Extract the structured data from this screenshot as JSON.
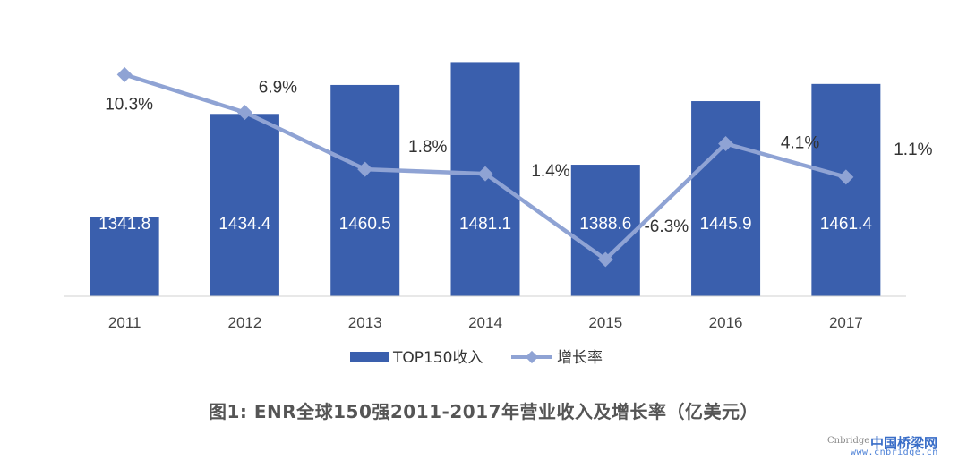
{
  "chart_data": {
    "type": "bar+line",
    "categories": [
      "2011",
      "2012",
      "2013",
      "2014",
      "2015",
      "2016",
      "2017"
    ],
    "series": [
      {
        "name": "TOP150收入",
        "type": "bar",
        "values": [
          1341.8,
          1434.4,
          1460.5,
          1481.1,
          1388.6,
          1445.9,
          1461.4
        ],
        "labels": [
          "1341.8",
          "1434.4",
          "1460.5",
          "1481.1",
          "1388.6",
          "1445.9",
          "1461.4"
        ],
        "color": "#3a5fad"
      },
      {
        "name": "增长率",
        "type": "line",
        "values": [
          10.3,
          6.9,
          1.8,
          1.4,
          -6.3,
          4.1,
          1.1
        ],
        "labels": [
          "10.3%",
          "6.9%",
          "1.8%",
          "1.4%",
          "-6.3%",
          "4.1%",
          "1.1%"
        ],
        "color": "#8fa3d4"
      }
    ],
    "bar_axis_range": [
      1270,
      1500
    ],
    "line_axis_range": [
      -9.6,
      13.3
    ],
    "grid": false,
    "legend": "bottom-center",
    "title": "图1:   ENR全球150强2011-2017年营业收入及增长率（亿美元）"
  },
  "watermark": {
    "en": "Cnbridge",
    "cn": "中国桥梁网",
    "url": "www.cnbridge.cn"
  }
}
